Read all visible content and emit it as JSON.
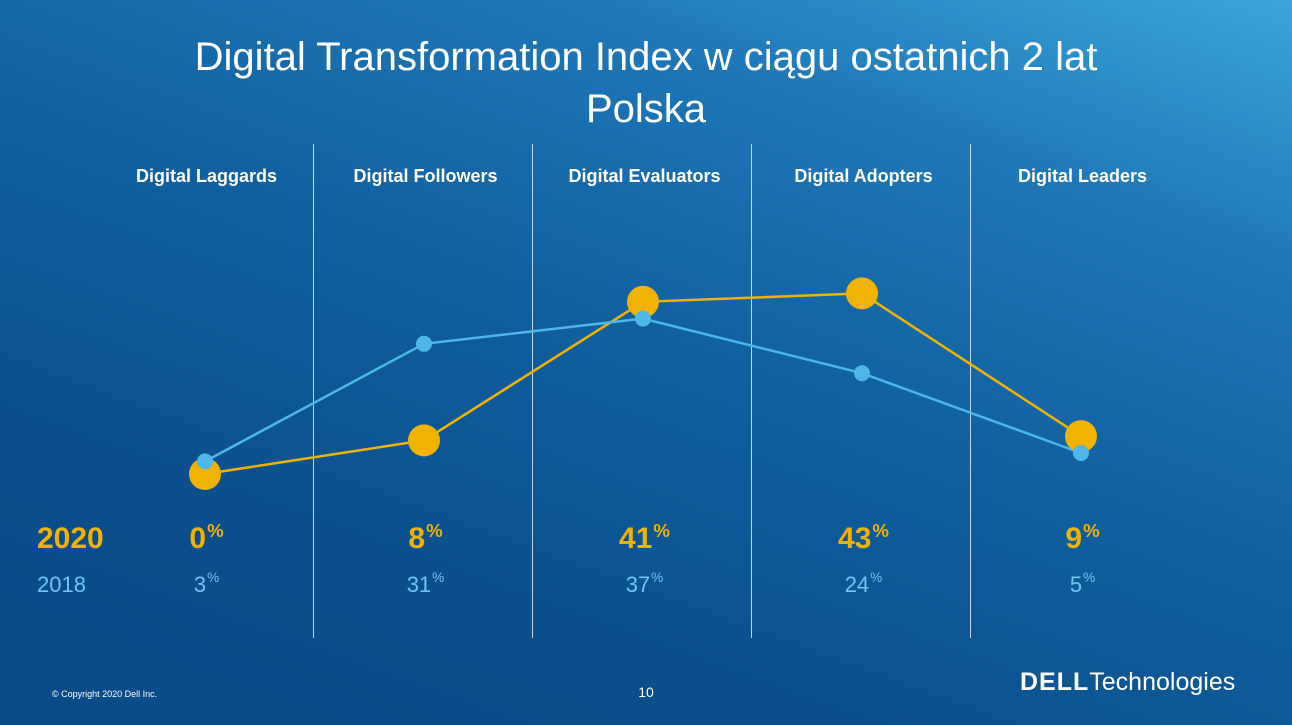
{
  "title": {
    "line1": "Digital Transformation Index w ciągu ostatnich 2 lat",
    "line2": "Polska"
  },
  "chart_data": {
    "type": "line",
    "title": "Digital Transformation Index w ciągu ostatnich 2 lat Polska",
    "categories": [
      "Digital Laggards",
      "Digital Followers",
      "Digital Evaluators",
      "Digital Adopters",
      "Digital Leaders"
    ],
    "series": [
      {
        "name": "2020",
        "values": [
          0,
          8,
          41,
          43,
          9
        ],
        "color": "#f2b300"
      },
      {
        "name": "2018",
        "values": [
          3,
          31,
          37,
          24,
          5
        ],
        "color": "#4db8e8"
      }
    ],
    "unit": "%",
    "ylim": [
      0,
      45
    ]
  },
  "footer": {
    "copyright": "© Copyright 2020 Dell Inc.",
    "page_number": "10",
    "logo_dell": "DELL",
    "logo_technologies": "Technologies"
  }
}
